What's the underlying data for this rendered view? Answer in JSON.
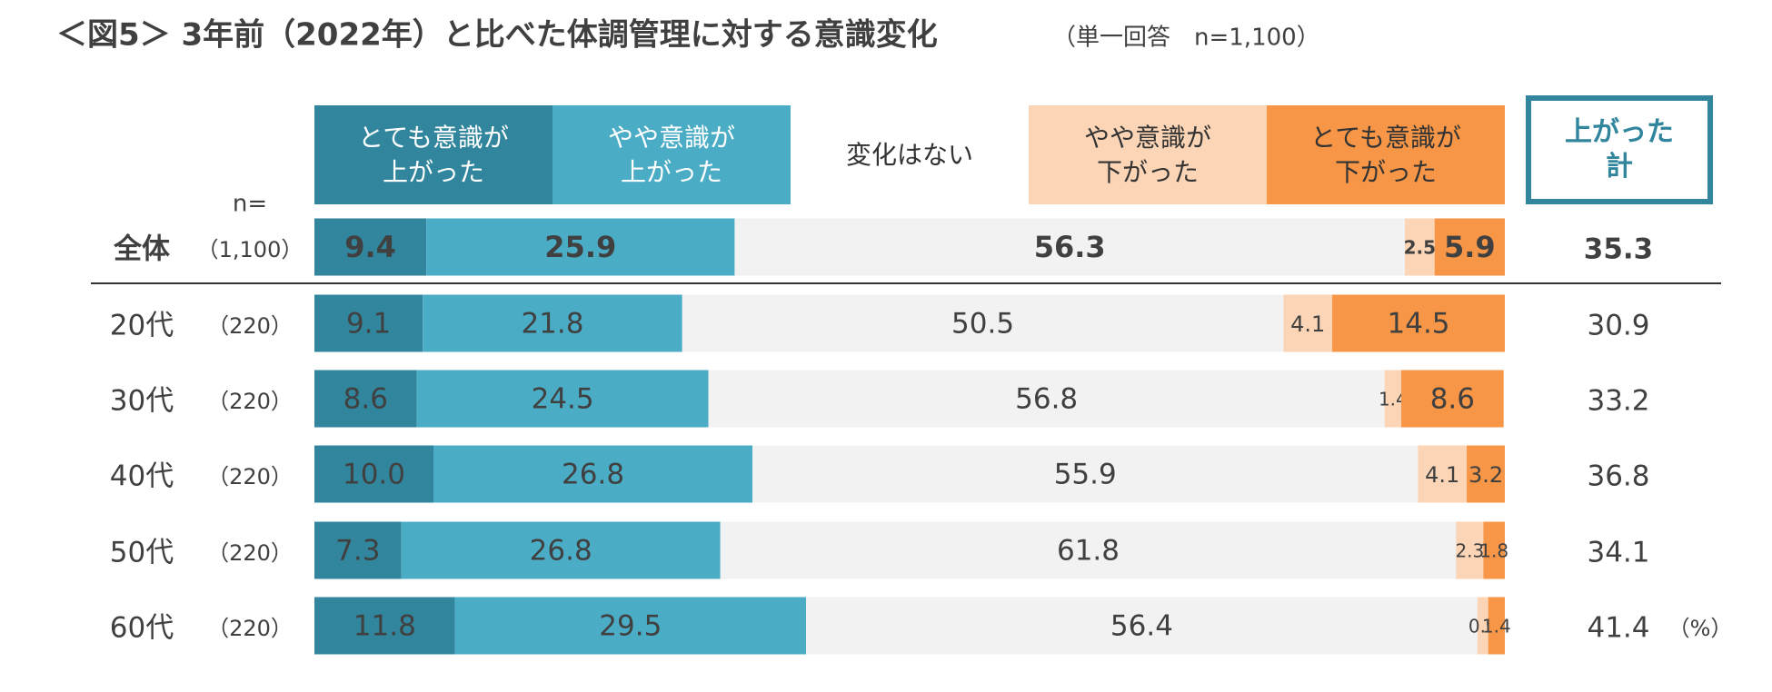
{
  "chart_data": {
    "type": "bar",
    "title": "＜図5＞ 3年前（2022年）と比べた体調管理に対する意識変化",
    "subtitle": "（単一回答　n=1,100）",
    "categories": [
      "全体",
      "20代",
      "30代",
      "40代",
      "50代",
      "60代"
    ],
    "n_header": "n=",
    "n_labels": [
      "（1,100）",
      "（220）",
      "（220）",
      "（220）",
      "（220）",
      "（220）"
    ],
    "xlim": [
      0,
      100
    ],
    "series": [
      {
        "name": "とても意識が\n上がった",
        "color": "#31859c",
        "values": [
          9.4,
          9.1,
          8.6,
          10.0,
          7.3,
          11.8
        ],
        "value_labels": [
          "9.4",
          "9.1",
          "8.6",
          "10.0",
          "7.3",
          "11.8"
        ]
      },
      {
        "name": "やや意識が\n上がった",
        "color": "#4bacc6",
        "values": [
          25.9,
          21.8,
          24.5,
          26.8,
          26.8,
          29.5
        ]
      },
      {
        "name": "変化はない",
        "color": "#f2f2f2",
        "values": [
          56.3,
          50.5,
          56.8,
          55.9,
          61.8,
          56.4
        ]
      },
      {
        "name": "やや意識が\n下がった",
        "color": "#fbd5b5",
        "values": [
          2.5,
          4.1,
          1.4,
          4.1,
          2.3,
          0.9
        ]
      },
      {
        "name": "とても意識が\n下がった",
        "color": "#f79646",
        "values": [
          5.9,
          14.5,
          8.6,
          3.2,
          1.8,
          1.4
        ]
      }
    ],
    "total_header": "上がった\n計",
    "totals": [
      35.3,
      30.9,
      33.2,
      36.8,
      34.1,
      41.4
    ],
    "unit": "（%）"
  }
}
